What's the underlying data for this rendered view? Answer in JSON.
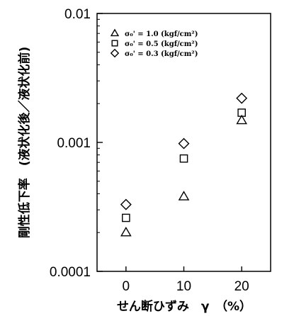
{
  "chart_data": {
    "type": "scatter",
    "title": "",
    "xlabel": "せん断ひずみ　γ　（%）",
    "ylabel": "剛性低下率　(液状化後／液状化前)",
    "xlim": [
      -5,
      25
    ],
    "ylim": [
      0.0001,
      0.01
    ],
    "y_scale": "log",
    "x_ticks": [
      0,
      10,
      20
    ],
    "x_tick_labels": [
      "0",
      "10",
      "20"
    ],
    "y_ticks": [
      0.0001,
      0.001,
      0.01
    ],
    "y_tick_labels": [
      "0.0001",
      "0.001",
      "0.01"
    ],
    "grid": false,
    "legend_position": "top-left",
    "series": [
      {
        "name": "σ₀' = 1.0 (kgf/cm²)",
        "marker": "triangle",
        "x": [
          0,
          10,
          20
        ],
        "y": [
          0.0002,
          0.00038,
          0.00148
        ]
      },
      {
        "name": "σ₀' = 0.5 (kgf/cm²)",
        "marker": "square",
        "x": [
          0,
          10,
          20
        ],
        "y": [
          0.00026,
          0.00075,
          0.0017
        ]
      },
      {
        "name": "σ₀' = 0.3 (kgf/cm²)",
        "marker": "diamond",
        "x": [
          0,
          10,
          20
        ],
        "y": [
          0.00033,
          0.00098,
          0.0022
        ]
      }
    ]
  }
}
